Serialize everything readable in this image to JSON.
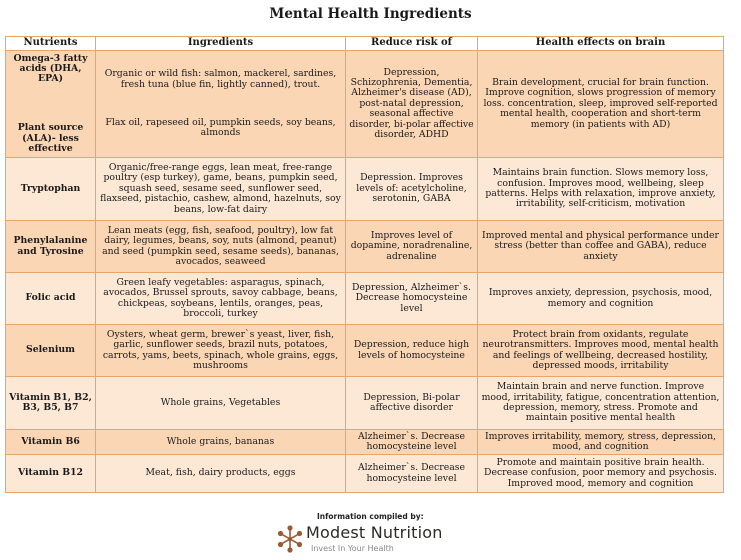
{
  "title": "Mental Health Ingredients",
  "headers": [
    "Nutrients",
    "Ingredients",
    "Reduce risk of",
    "Health effects on brain"
  ],
  "omega": {
    "nutrient_a": "Omega-3 fatty acids (DHA, EPA)",
    "nutrient_b": "Plant source (ALA)- less effective",
    "ingredients_a": "Organic or wild fish: salmon, mackerel, sardines, fresh tuna (blue fin, lightly canned), trout.",
    "ingredients_b": "Flax oil, rapeseed oil, pumpkin seeds, soy beans, almonds",
    "risk": "Depression, Schizophrenia, Dementia, Alzheimer's disease (AD), post-natal depression, seasonal affective disorder, bi-polar affective disorder, ADHD",
    "effects": "Brain development, crucial for brain function. Improve cognition, slows progression of memory loss. concentration, sleep, improved self-reported mental health, cooperation and short-term memory (in patients with AD)"
  },
  "rows": [
    {
      "nutrient": "Tryptophan",
      "ingredients": "Organic/free-range eggs, lean meat, free-range poultry (esp turkey), game, beans, pumpkin seed, squash seed, sesame seed, sunflower seed, flaxseed, pistachio, cashew, almond, hazelnuts, soy beans, low-fat dairy",
      "risk": "Depression. Improves levels of: acetylcholine, serotonin, GABA",
      "effects": "Maintains brain function. Slows memory loss, confusion. Improves mood, wellbeing, sleep patterns. Helps with relaxation, improve anxiety, irritability, self-criticism, motivation"
    },
    {
      "nutrient": "Phenylalanine and Tyrosine",
      "ingredients": "Lean meats (egg, fish, seafood, poultry), low fat dairy, legumes, beans, soy, nuts (almond, peanut) and seed (pumpkin seed, sesame seeds), bananas, avocados, seaweed",
      "risk": "Improves level of dopamine, noradrenaline, adrenaline",
      "effects": "Improved mental and physical performance under stress (better than coffee and GABA), reduce anxiety"
    },
    {
      "nutrient": "Folic acid",
      "ingredients": "Green leafy vegetables: asparagus, spinach, avocados, Brussel sprouts, savoy cabbage, beans, chickpeas, soybeans, lentils, oranges, peas, broccoli, turkey",
      "risk": "Depression, Alzheimer`s. Decrease homocysteine level",
      "effects": "Improves anxiety, depression, psychosis, mood, memory and cognition"
    },
    {
      "nutrient": "Selenium",
      "ingredients": "Oysters, wheat germ, brewer`s yeast, liver, fish, garlic, sunflower seeds, brazil nuts, potatoes, carrots, yams, beets, spinach, whole grains, eggs, mushrooms",
      "risk": "Depression, reduce high levels of homocysteine",
      "effects": "Protect brain from oxidants, regulate neurotransmitters. Improves mood, mental health and feelings of wellbeing, decreased hostility, depressed moods, irritability"
    },
    {
      "nutrient": "Vitamin B1, B2, B3, B5, B7",
      "ingredients": "Whole grains, Vegetables",
      "risk": "Depression, Bi-polar affective disorder",
      "effects": "Maintain brain and nerve function. Improve mood, irritability, fatigue, concentration attention, depression, memory, stress. Promote and maintain positive mental health"
    },
    {
      "nutrient": "Vitamin B6",
      "ingredients": "Whole grains, bananas",
      "risk": "Alzheimer`s. Decrease homocysteine level",
      "effects": "Improves irritability, memory, stress, depression, mood, and cognition"
    },
    {
      "nutrient": "Vitamin B12",
      "ingredients": "Meat, fish, dairy products, eggs",
      "risk": "Alzheimer`s. Decrease homocysteine level",
      "effects": "Promote and maintain positive brain health. Decrease confusion, poor memory and psychosis. Improved mood, memory and cognition"
    }
  ],
  "footer": {
    "compiled": "Information compiled by:",
    "brand": "Modest Nutrition",
    "tagline": "Invest In Your Health",
    "logo_icon": "flower-logo-icon",
    "accent": "#e8a56a",
    "row_dark": "#fbd6b5",
    "row_light": "#fde8d6"
  }
}
